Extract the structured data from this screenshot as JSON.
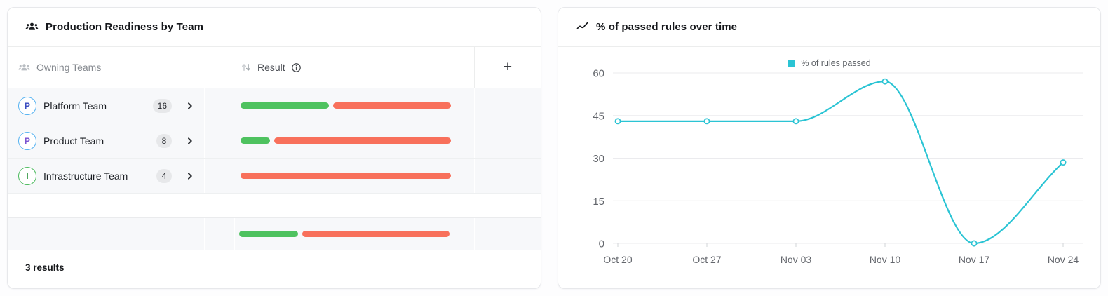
{
  "panels": {
    "readiness": {
      "title": "Production Readiness by Team",
      "columns": {
        "owning_teams": "Owning Teams",
        "result": "Result"
      },
      "add_label": "+",
      "footer": "3 results",
      "colors": {
        "passed": "#4ec25f",
        "failed": "#f8705b",
        "badge_bg": "#e7e8ea"
      },
      "teams": [
        {
          "initial": "P",
          "name": "Platform Team",
          "count": "16",
          "avatar_ring": "#55b2f1",
          "avatar_text": "#3b4cc0",
          "result": {
            "passed_pct": 42,
            "failed_pct": 56
          }
        },
        {
          "initial": "P",
          "name": "Product Team",
          "count": "8",
          "avatar_ring": "#55b2f1",
          "avatar_text": "#7a52d1",
          "result": {
            "passed_pct": 14,
            "failed_pct": 84
          }
        },
        {
          "initial": "I",
          "name": "Infrastructure Team",
          "count": "4",
          "avatar_ring": "#4cbb5e",
          "avatar_text": "#3e9e4e",
          "result": {
            "passed_pct": 0,
            "failed_pct": 100
          }
        }
      ],
      "summary_row": {
        "passed_pct": 28,
        "failed_pct": 70
      }
    },
    "chart": {
      "title": "% of passed rules over time"
    }
  },
  "chart_data": {
    "type": "line",
    "title": "% of passed rules over time",
    "legend_label": "% of rules passed",
    "legend_position": "top-center",
    "x": [
      "Oct 20",
      "Oct 27",
      "Nov 03",
      "Nov 10",
      "Nov 17",
      "Nov 24"
    ],
    "series": [
      {
        "name": "% of rules passed",
        "values": [
          43,
          43,
          43,
          57,
          0,
          28.5
        ]
      }
    ],
    "ylim": [
      0,
      60
    ],
    "yticks": [
      0,
      15,
      30,
      45,
      60
    ],
    "color": "#2bc4d4",
    "grid": true,
    "smooth": true
  }
}
